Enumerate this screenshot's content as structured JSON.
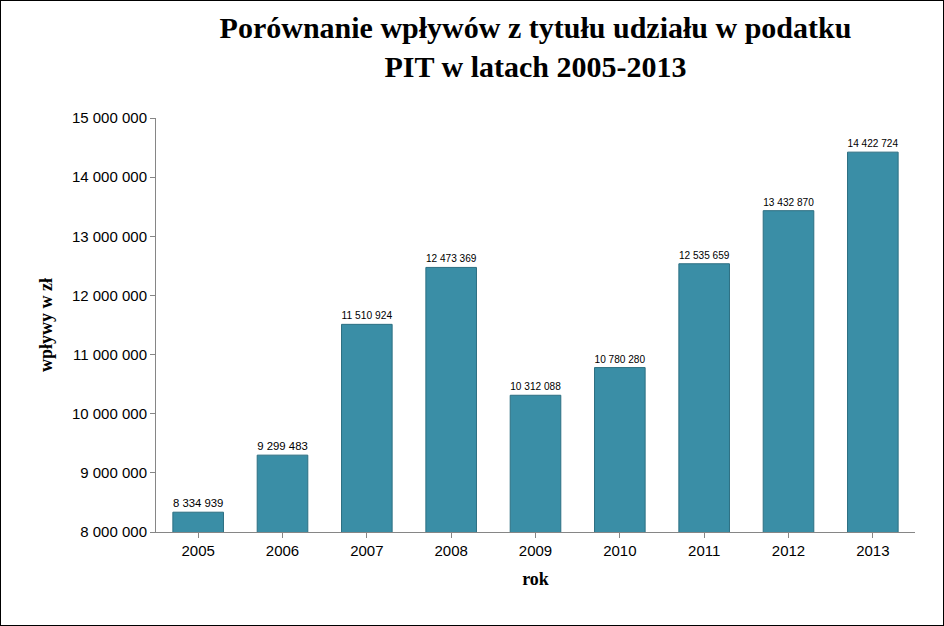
{
  "chart_data": {
    "type": "bar",
    "title": "Porównanie wpływów z tytułu udziału w podatku\nPIT w latach 2005-2013",
    "x_label": "rok",
    "y_label": "wpływy w zł",
    "categories": [
      "2005",
      "2006",
      "2007",
      "2008",
      "2009",
      "2010",
      "2011",
      "2012",
      "2013"
    ],
    "values": [
      8334939,
      9299483,
      11510924,
      12473369,
      10312088,
      10780280,
      12535659,
      13432870,
      14422724
    ],
    "value_labels": [
      "8 334 939",
      "9 299 483",
      "11 510 924",
      "12 473 369",
      "10 312 088",
      "10 780 280",
      "12 535 659",
      "13 432 870",
      "14 422 724"
    ],
    "data_labels": true,
    "color": "#3a8ea6",
    "ylim": [
      8000000,
      15000000
    ],
    "yticks": [
      {
        "value": 8000000,
        "label": "8 000 000"
      },
      {
        "value": 9000000,
        "label": "9 000 000"
      },
      {
        "value": 10000000,
        "label": "10 000 000"
      },
      {
        "value": 11000000,
        "label": "11 000 000"
      },
      {
        "value": 12000000,
        "label": "12 000 000"
      },
      {
        "value": 13000000,
        "label": "13 000 000"
      },
      {
        "value": 14000000,
        "label": "14 000 000"
      },
      {
        "value": 15000000,
        "label": "15 000 000"
      }
    ],
    "grid": false
  }
}
